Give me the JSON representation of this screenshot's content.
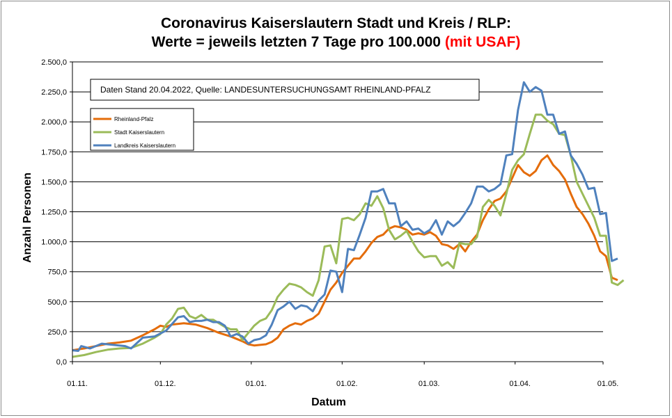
{
  "chart_data": {
    "type": "line",
    "title_line1": "Coronavirus Kaiserslautern Stadt und Kreis / RLP:",
    "title_line2": "Werte = jeweils letzten 7 Tage pro 100.000",
    "title_highlight": "(mit USAF)",
    "xlabel": "Datum",
    "ylabel": "Anzahl Personen",
    "ylim": [
      0,
      2500
    ],
    "yticks": [
      {
        "value": 0,
        "label": "0,0"
      },
      {
        "value": 250,
        "label": "250,0"
      },
      {
        "value": 500,
        "label": "500,0"
      },
      {
        "value": 750,
        "label": "750,0"
      },
      {
        "value": 1000,
        "label": "1.000,0"
      },
      {
        "value": 1250,
        "label": "1.250,0"
      },
      {
        "value": 1500,
        "label": "1.500,0"
      },
      {
        "value": 1750,
        "label": "1.750,0"
      },
      {
        "value": 2000,
        "label": "2.000,0"
      },
      {
        "value": 2250,
        "label": "2.250,0"
      },
      {
        "value": 2500,
        "label": "2.500,0"
      }
    ],
    "x_unit": "Tage ab 01.11.",
    "xlim": [
      0,
      181
    ],
    "xticks": [
      {
        "value": 0,
        "label": "01.11."
      },
      {
        "value": 30,
        "label": "01.12."
      },
      {
        "value": 61,
        "label": "01.01."
      },
      {
        "value": 92,
        "label": "01.02."
      },
      {
        "value": 120,
        "label": "01.03."
      },
      {
        "value": 151,
        "label": "01.04."
      },
      {
        "value": 181,
        "label": "01.05."
      }
    ],
    "grid": "horizontal",
    "note": "Daten Stand 20.04.2022, Quelle: LANDESUNTERSUCHUNGSAMT RHEINLAND-PFALZ",
    "legend_position": "top-left",
    "series": [
      {
        "name": "Rheinland-Pfalz",
        "color": "#e46c0a",
        "points": [
          [
            0,
            95
          ],
          [
            4,
            110
          ],
          [
            8,
            130
          ],
          [
            12,
            150
          ],
          [
            16,
            160
          ],
          [
            20,
            175
          ],
          [
            24,
            220
          ],
          [
            28,
            270
          ],
          [
            30,
            300
          ],
          [
            32,
            290
          ],
          [
            34,
            310
          ],
          [
            38,
            320
          ],
          [
            42,
            310
          ],
          [
            46,
            280
          ],
          [
            50,
            240
          ],
          [
            54,
            210
          ],
          [
            58,
            170
          ],
          [
            60,
            145
          ],
          [
            62,
            135
          ],
          [
            64,
            140
          ],
          [
            66,
            145
          ],
          [
            68,
            165
          ],
          [
            70,
            200
          ],
          [
            72,
            270
          ],
          [
            74,
            300
          ],
          [
            76,
            320
          ],
          [
            78,
            310
          ],
          [
            80,
            340
          ],
          [
            82,
            360
          ],
          [
            84,
            400
          ],
          [
            86,
            500
          ],
          [
            88,
            600
          ],
          [
            90,
            660
          ],
          [
            92,
            740
          ],
          [
            94,
            800
          ],
          [
            96,
            860
          ],
          [
            98,
            860
          ],
          [
            100,
            920
          ],
          [
            102,
            990
          ],
          [
            104,
            1040
          ],
          [
            106,
            1060
          ],
          [
            108,
            1110
          ],
          [
            110,
            1130
          ],
          [
            112,
            1120
          ],
          [
            114,
            1100
          ],
          [
            116,
            1060
          ],
          [
            118,
            1070
          ],
          [
            120,
            1060
          ],
          [
            122,
            1080
          ],
          [
            124,
            1050
          ],
          [
            126,
            980
          ],
          [
            128,
            970
          ],
          [
            130,
            940
          ],
          [
            132,
            980
          ],
          [
            134,
            920
          ],
          [
            136,
            1000
          ],
          [
            138,
            1060
          ],
          [
            140,
            1180
          ],
          [
            142,
            1270
          ],
          [
            144,
            1340
          ],
          [
            146,
            1360
          ],
          [
            148,
            1420
          ],
          [
            150,
            1530
          ],
          [
            152,
            1640
          ],
          [
            154,
            1580
          ],
          [
            156,
            1550
          ],
          [
            158,
            1590
          ],
          [
            160,
            1680
          ],
          [
            162,
            1720
          ],
          [
            164,
            1640
          ],
          [
            166,
            1590
          ],
          [
            168,
            1520
          ],
          [
            170,
            1400
          ],
          [
            172,
            1290
          ],
          [
            174,
            1230
          ],
          [
            176,
            1150
          ],
          [
            178,
            1050
          ],
          [
            180,
            920
          ],
          [
            182,
            880
          ],
          [
            184,
            700
          ],
          [
            186,
            680
          ]
        ]
      },
      {
        "name": "Stadt Kaiserslautern",
        "color": "#9bbb59",
        "points": [
          [
            0,
            40
          ],
          [
            4,
            55
          ],
          [
            8,
            80
          ],
          [
            12,
            100
          ],
          [
            16,
            110
          ],
          [
            20,
            115
          ],
          [
            24,
            150
          ],
          [
            28,
            200
          ],
          [
            30,
            230
          ],
          [
            32,
            310
          ],
          [
            34,
            360
          ],
          [
            36,
            440
          ],
          [
            38,
            450
          ],
          [
            40,
            380
          ],
          [
            42,
            360
          ],
          [
            44,
            390
          ],
          [
            46,
            350
          ],
          [
            48,
            350
          ],
          [
            50,
            320
          ],
          [
            52,
            290
          ],
          [
            54,
            270
          ],
          [
            56,
            270
          ],
          [
            58,
            180
          ],
          [
            60,
            240
          ],
          [
            62,
            300
          ],
          [
            64,
            340
          ],
          [
            66,
            360
          ],
          [
            68,
            430
          ],
          [
            70,
            540
          ],
          [
            72,
            600
          ],
          [
            74,
            650
          ],
          [
            76,
            640
          ],
          [
            78,
            620
          ],
          [
            80,
            580
          ],
          [
            82,
            550
          ],
          [
            84,
            680
          ],
          [
            86,
            960
          ],
          [
            88,
            970
          ],
          [
            90,
            820
          ],
          [
            92,
            1190
          ],
          [
            94,
            1200
          ],
          [
            96,
            1180
          ],
          [
            98,
            1230
          ],
          [
            100,
            1320
          ],
          [
            102,
            1300
          ],
          [
            104,
            1380
          ],
          [
            106,
            1280
          ],
          [
            108,
            1100
          ],
          [
            110,
            1020
          ],
          [
            112,
            1050
          ],
          [
            114,
            1090
          ],
          [
            116,
            1000
          ],
          [
            118,
            920
          ],
          [
            120,
            870
          ],
          [
            122,
            880
          ],
          [
            124,
            880
          ],
          [
            126,
            800
          ],
          [
            128,
            830
          ],
          [
            130,
            780
          ],
          [
            132,
            990
          ],
          [
            134,
            980
          ],
          [
            136,
            980
          ],
          [
            138,
            1040
          ],
          [
            140,
            1290
          ],
          [
            142,
            1350
          ],
          [
            144,
            1300
          ],
          [
            146,
            1220
          ],
          [
            148,
            1400
          ],
          [
            150,
            1600
          ],
          [
            152,
            1680
          ],
          [
            154,
            1730
          ],
          [
            156,
            1900
          ],
          [
            158,
            2060
          ],
          [
            160,
            2060
          ],
          [
            162,
            2010
          ],
          [
            164,
            1980
          ],
          [
            166,
            1900
          ],
          [
            168,
            1890
          ],
          [
            170,
            1720
          ],
          [
            172,
            1500
          ],
          [
            174,
            1400
          ],
          [
            176,
            1300
          ],
          [
            178,
            1200
          ],
          [
            180,
            1050
          ],
          [
            182,
            1050
          ],
          [
            184,
            660
          ],
          [
            186,
            640
          ],
          [
            188,
            680
          ]
        ]
      },
      {
        "name": "Landkreis Kaiserslautern",
        "color": "#4f81bd",
        "points": [
          [
            0,
            95
          ],
          [
            2,
            90
          ],
          [
            3,
            130
          ],
          [
            6,
            110
          ],
          [
            10,
            150
          ],
          [
            14,
            140
          ],
          [
            18,
            130
          ],
          [
            20,
            110
          ],
          [
            24,
            200
          ],
          [
            28,
            210
          ],
          [
            32,
            260
          ],
          [
            36,
            370
          ],
          [
            38,
            380
          ],
          [
            40,
            330
          ],
          [
            42,
            340
          ],
          [
            44,
            340
          ],
          [
            46,
            350
          ],
          [
            48,
            330
          ],
          [
            50,
            330
          ],
          [
            52,
            300
          ],
          [
            54,
            210
          ],
          [
            56,
            230
          ],
          [
            58,
            210
          ],
          [
            60,
            150
          ],
          [
            62,
            180
          ],
          [
            64,
            190
          ],
          [
            66,
            220
          ],
          [
            68,
            310
          ],
          [
            70,
            430
          ],
          [
            72,
            460
          ],
          [
            74,
            500
          ],
          [
            76,
            440
          ],
          [
            78,
            470
          ],
          [
            80,
            460
          ],
          [
            82,
            420
          ],
          [
            84,
            510
          ],
          [
            86,
            560
          ],
          [
            88,
            760
          ],
          [
            90,
            750
          ],
          [
            92,
            580
          ],
          [
            94,
            940
          ],
          [
            96,
            930
          ],
          [
            98,
            1060
          ],
          [
            100,
            1200
          ],
          [
            102,
            1420
          ],
          [
            104,
            1420
          ],
          [
            106,
            1440
          ],
          [
            108,
            1320
          ],
          [
            110,
            1320
          ],
          [
            112,
            1130
          ],
          [
            114,
            1170
          ],
          [
            116,
            1100
          ],
          [
            118,
            1110
          ],
          [
            120,
            1070
          ],
          [
            122,
            1100
          ],
          [
            124,
            1180
          ],
          [
            126,
            1060
          ],
          [
            128,
            1170
          ],
          [
            130,
            1130
          ],
          [
            132,
            1170
          ],
          [
            134,
            1240
          ],
          [
            136,
            1320
          ],
          [
            138,
            1460
          ],
          [
            140,
            1460
          ],
          [
            142,
            1420
          ],
          [
            144,
            1440
          ],
          [
            146,
            1480
          ],
          [
            148,
            1720
          ],
          [
            150,
            1730
          ],
          [
            152,
            2100
          ],
          [
            154,
            2330
          ],
          [
            156,
            2250
          ],
          [
            158,
            2290
          ],
          [
            160,
            2260
          ],
          [
            162,
            2060
          ],
          [
            164,
            2060
          ],
          [
            166,
            1900
          ],
          [
            168,
            1920
          ],
          [
            170,
            1720
          ],
          [
            172,
            1650
          ],
          [
            174,
            1560
          ],
          [
            176,
            1440
          ],
          [
            178,
            1450
          ],
          [
            180,
            1230
          ],
          [
            182,
            1240
          ],
          [
            184,
            840
          ],
          [
            186,
            860
          ]
        ]
      }
    ]
  }
}
